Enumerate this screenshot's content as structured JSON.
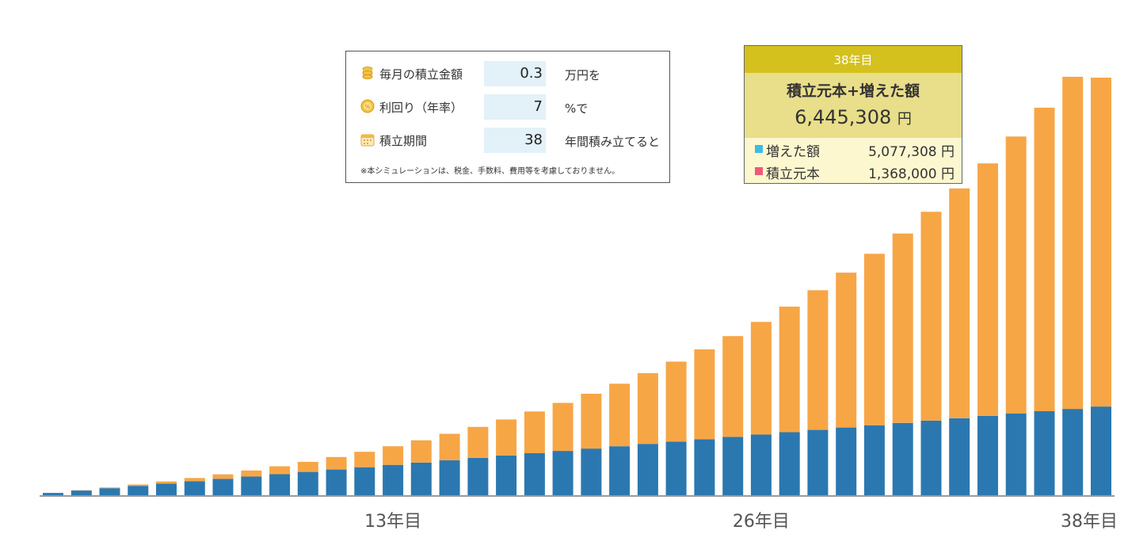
{
  "inputs": {
    "monthly": {
      "label": "毎月の積立金額",
      "value": "0.3",
      "unit": "万円を",
      "icon": "coins-icon"
    },
    "rate": {
      "label": "利回り（年率）",
      "value": "7",
      "unit": "%で",
      "icon": "percent-coin-icon"
    },
    "period": {
      "label": "積立期間",
      "value": "38",
      "unit": "年間積み立てると",
      "icon": "calendar-icon"
    },
    "note": "※本シミュレーションは、税金、手数料、費用等を考慮しておりません。"
  },
  "result": {
    "year_label": "38年目",
    "title": "積立元本+増えた額",
    "total": "6,445,308",
    "total_unit": "円",
    "gain_label": "増えた額",
    "gain_value": "5,077,308 円",
    "principal_label": "積立元本",
    "principal_value": "1,368,000 円"
  },
  "colors": {
    "principal": "#2b78b0",
    "gain": "#f7a646",
    "gain_legend": "#39bde4",
    "principal_legend": "#ee5a78",
    "result_header": "#d4c11e",
    "result_main": "#e9de8a",
    "result_legend_bg": "#fdf7cf",
    "input_value_bg": "#e3f1f8"
  },
  "chart_data": {
    "type": "bar",
    "stacked": true,
    "x": [
      1,
      2,
      3,
      4,
      5,
      6,
      7,
      8,
      9,
      10,
      11,
      12,
      13,
      14,
      15,
      16,
      17,
      18,
      19,
      20,
      21,
      22,
      23,
      24,
      25,
      26,
      27,
      28,
      29,
      30,
      31,
      32,
      33,
      34,
      35,
      36,
      37,
      38
    ],
    "x_tick_labels": [
      {
        "x": 13,
        "label": "13年目"
      },
      {
        "x": 26,
        "label": "26年目"
      },
      {
        "x": 38,
        "label": "38年目"
      }
    ],
    "series": [
      {
        "key": "principal",
        "name": "積立元本",
        "values": [
          36000,
          72000,
          108000,
          144000,
          180000,
          216000,
          252000,
          288000,
          324000,
          360000,
          396000,
          432000,
          468000,
          504000,
          540000,
          576000,
          612000,
          648000,
          684000,
          720000,
          756000,
          792000,
          828000,
          864000,
          900000,
          936000,
          972000,
          1008000,
          1044000,
          1080000,
          1116000,
          1152000,
          1188000,
          1224000,
          1260000,
          1296000,
          1332000,
          1368000
        ]
      },
      {
        "key": "gain",
        "name": "増えた額",
        "values": [
          1180,
          4860,
          11280,
          20690,
          33350,
          49520,
          69490,
          93570,
          122070,
          155350,
          193790,
          237790,
          287760,
          344150,
          407450,
          478180,
          556900,
          644220,
          740770,
          847250,
          964390,
          1092960,
          1233800,
          1387810,
          1555940,
          1739200,
          1938680,
          2155530,
          2391000,
          2646420,
          2923230,
          3222950,
          3547240,
          3897840,
          4276640,
          4685650,
          5127030,
          5077308
        ]
      }
    ],
    "ylim": [
      0,
      6445308
    ]
  }
}
